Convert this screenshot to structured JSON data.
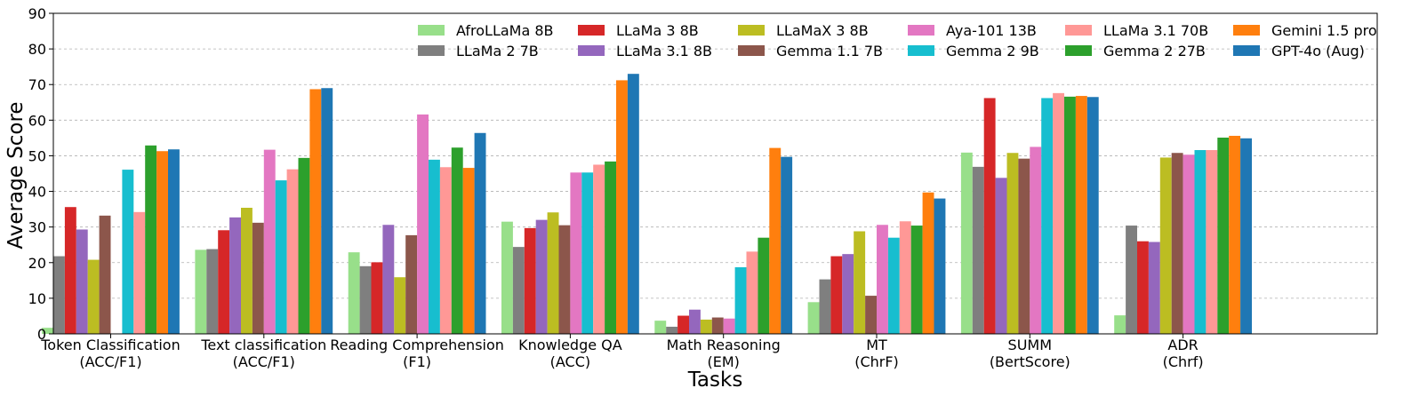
{
  "chart_data": {
    "type": "bar",
    "title": "",
    "xlabel": "Tasks",
    "ylabel": "Average Score",
    "ylim": [
      0,
      90
    ],
    "yticks": [
      0,
      10,
      20,
      30,
      40,
      50,
      60,
      70,
      80,
      90
    ],
    "grid": "y-dashed",
    "legend_position": "top-right",
    "legend_columns": 6,
    "categories": [
      [
        "Token Classification",
        "(ACC/F1)"
      ],
      [
        "Text classification",
        "(ACC/F1)"
      ],
      [
        "Reading Comprehension",
        "(F1)"
      ],
      [
        "Knowledge QA",
        "(ACC)"
      ],
      [
        "Math Reasoning",
        "(EM)"
      ],
      [
        "MT",
        "(ChrF)"
      ],
      [
        "SUMM",
        "(BertScore)"
      ],
      [
        "ADR",
        "(Chrf)"
      ]
    ],
    "series": [
      {
        "name": "AfroLLaMa 8B",
        "color": "#98df8a",
        "values": [
          1.7,
          23.6,
          22.9,
          31.5,
          3.7,
          8.9,
          50.9,
          5.2
        ]
      },
      {
        "name": "LLaMa 2 7B",
        "color": "#7f7f7f",
        "values": [
          21.8,
          23.8,
          19.0,
          24.4,
          2.0,
          15.3,
          46.9,
          30.4
        ]
      },
      {
        "name": "LLaMa 3 8B",
        "color": "#d62728",
        "values": [
          35.6,
          29.1,
          20.1,
          29.7,
          5.1,
          21.8,
          66.2,
          26.0
        ]
      },
      {
        "name": "LLaMa 3.1 8B",
        "color": "#9467bd",
        "values": [
          29.3,
          32.7,
          30.6,
          32.0,
          6.8,
          22.4,
          43.8,
          25.8
        ]
      },
      {
        "name": "LLaMaX 3 8B",
        "color": "#bcbd22",
        "values": [
          20.8,
          35.4,
          15.9,
          34.1,
          4.0,
          28.8,
          50.8,
          49.5
        ]
      },
      {
        "name": "Gemma 1.1 7B",
        "color": "#8c564b",
        "values": [
          33.2,
          31.2,
          27.7,
          30.5,
          4.6,
          10.7,
          49.2,
          50.8
        ]
      },
      {
        "name": "Aya-101 13B",
        "color": "#e377c2",
        "values": [
          0.0,
          51.7,
          61.6,
          45.3,
          4.3,
          30.6,
          52.5,
          50.3
        ]
      },
      {
        "name": "Gemma 2 9B",
        "color": "#17becf",
        "values": [
          46.1,
          43.1,
          48.9,
          45.3,
          18.7,
          27.0,
          66.2,
          51.6
        ]
      },
      {
        "name": "LLaMa 3.1 70B",
        "color": "#ff9896",
        "values": [
          34.2,
          46.2,
          46.8,
          47.5,
          23.1,
          31.6,
          67.6,
          51.6
        ]
      },
      {
        "name": "Gemma 2 27B",
        "color": "#2ca02c",
        "values": [
          52.9,
          49.4,
          52.3,
          48.4,
          27.0,
          30.4,
          66.6,
          55.1
        ]
      },
      {
        "name": "Gemini 1.5 pro",
        "color": "#ff7f0e",
        "values": [
          51.3,
          68.7,
          46.6,
          71.2,
          52.2,
          39.7,
          66.8,
          55.6
        ]
      },
      {
        "name": "GPT-4o (Aug)",
        "color": "#1f77b4",
        "values": [
          51.8,
          69.0,
          56.4,
          73.0,
          49.7,
          38.0,
          66.5,
          54.9
        ]
      }
    ]
  }
}
